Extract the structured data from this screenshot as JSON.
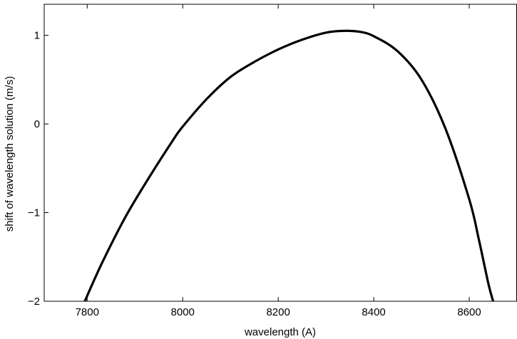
{
  "chart_data": {
    "type": "line",
    "title": "",
    "xlabel": "wavelength (A)",
    "ylabel": "shift of wavelength solution (m/s)",
    "xlim": [
      7710,
      8700
    ],
    "ylim": [
      -2,
      1.35
    ],
    "x_ticks": [
      7800,
      8000,
      8200,
      8400,
      8600
    ],
    "y_ticks": [
      -2,
      -1,
      0,
      1
    ],
    "x_tick_labels": [
      "7800",
      "8000",
      "8200",
      "8400",
      "8600"
    ],
    "y_tick_labels": [
      "−2",
      "−1",
      "0",
      "1"
    ],
    "grid": false,
    "legend": "none",
    "line_color": "#000000",
    "series": [
      {
        "x": [
          7795,
          7830,
          7880,
          7930,
          7980,
          8000,
          8050,
          8100,
          8150,
          8200,
          8250,
          8300,
          8335,
          8370,
          8400,
          8450,
          8500,
          8550,
          8600,
          8620,
          8640,
          8650
        ],
        "y": [
          -2.0,
          -1.58,
          -1.05,
          -0.6,
          -0.18,
          -0.03,
          0.28,
          0.53,
          0.7,
          0.84,
          0.95,
          1.03,
          1.05,
          1.04,
          0.99,
          0.82,
          0.5,
          -0.05,
          -0.85,
          -1.3,
          -1.8,
          -2.0
        ]
      }
    ]
  }
}
